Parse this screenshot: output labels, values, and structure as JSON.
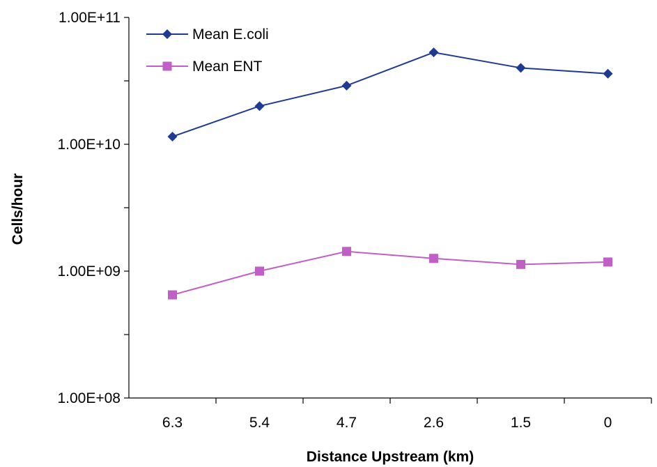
{
  "chart_data": {
    "type": "line",
    "title": "",
    "xlabel": "Distance Upstream (km)",
    "ylabel": "Cells/hour",
    "y_scale": "log",
    "ylim": [
      100000000,
      100000000000
    ],
    "y_ticks": [
      100000000,
      1000000000,
      10000000000,
      100000000000
    ],
    "y_tick_labels": [
      "1.00E+08",
      "1.00E+09",
      "1.00E+10",
      "1.00E+11"
    ],
    "categories": [
      "6.3",
      "5.4",
      "4.7",
      "2.6",
      "1.5",
      "0"
    ],
    "grid": false,
    "legend_position": "top-left",
    "series": [
      {
        "name": "Mean E.coli",
        "color": "#1F3A93",
        "marker": "diamond",
        "values": [
          11500000000,
          20000000000,
          29000000000,
          53000000000,
          40000000000,
          36000000000
        ]
      },
      {
        "name": "Mean ENT",
        "color": "#C05FC6",
        "marker": "square",
        "values": [
          650000000,
          1000000000,
          1430000000,
          1260000000,
          1130000000,
          1180000000
        ]
      }
    ]
  }
}
